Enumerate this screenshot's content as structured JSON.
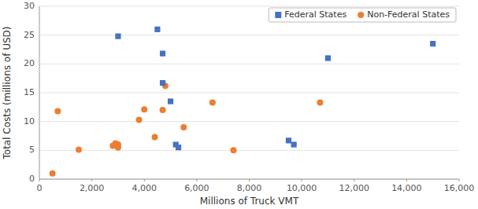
{
  "chart_data": {
    "type": "scatter",
    "xlabel": "Millions of Truck VMT",
    "ylabel": "Total Costs (millions of USD)",
    "series": [
      {
        "name": "Federal States",
        "color": "#4472C4",
        "marker": "square",
        "x": [
          3000,
          4500,
          4700,
          4700,
          5000,
          5200,
          5300,
          9500,
          9700,
          11000,
          15000
        ],
        "values": [
          24.8,
          26.0,
          21.8,
          16.7,
          13.5,
          6.0,
          5.5,
          6.7,
          6.0,
          21.0,
          23.5
        ]
      },
      {
        "name": "Non-Federal States",
        "color": "#ED7D31",
        "marker": "circle",
        "x": [
          500,
          700,
          1500,
          2800,
          2900,
          3000,
          3000,
          3800,
          4000,
          4400,
          4700,
          4800,
          5500,
          6600,
          7400,
          10700
        ],
        "values": [
          1.0,
          11.8,
          5.1,
          5.8,
          6.2,
          5.5,
          6.0,
          10.3,
          12.1,
          7.3,
          12.0,
          16.2,
          9.0,
          13.3,
          5.0,
          13.3
        ]
      }
    ],
    "xlim": [
      0,
      16000
    ],
    "ylim": [
      0,
      30
    ],
    "xticks": [
      0,
      {
        "value": 2000,
        "label": "2,000"
      },
      {
        "value": 4000,
        "label": "4,000"
      },
      {
        "value": 6000,
        "label": "6,000"
      },
      {
        "value": 8000,
        "label": "8,000"
      },
      {
        "value": 10000,
        "label": "10,000"
      },
      {
        "value": 12000,
        "label": "12,000"
      },
      {
        "value": 14000,
        "label": "14,000"
      },
      {
        "value": 16000,
        "label": "16,000"
      }
    ],
    "yticks": [
      0,
      5,
      10,
      15,
      20,
      25,
      30
    ],
    "grid": "y",
    "legend": "upper right"
  }
}
